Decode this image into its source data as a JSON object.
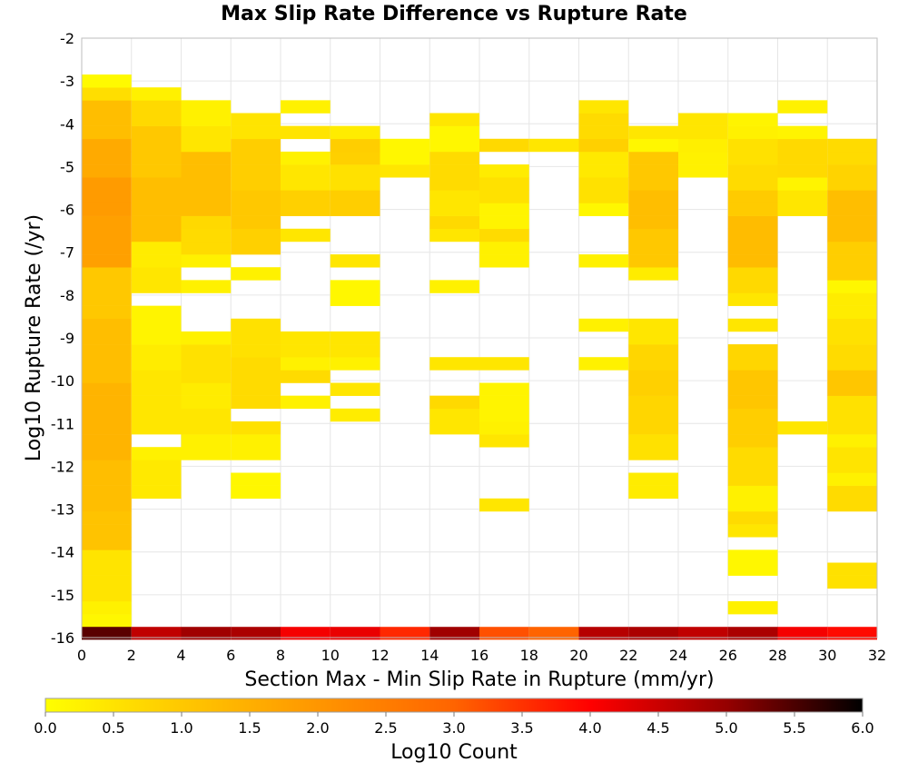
{
  "chart_data": {
    "type": "heatmap",
    "title": "Max Slip Rate Difference vs Rupture Rate",
    "xlabel": "Section Max - Min Slip Rate in Rupture (mm/yr)",
    "ylabel": "Log10 Rupture Rate (/yr)",
    "xlim": [
      0,
      32
    ],
    "ylim": [
      -16,
      -2
    ],
    "x_ticks": [
      "0",
      "2",
      "4",
      "6",
      "8",
      "10",
      "12",
      "14",
      "16",
      "18",
      "20",
      "22",
      "24",
      "26",
      "28",
      "30",
      "32"
    ],
    "y_ticks": [
      "-2",
      "-3",
      "-4",
      "-5",
      "-6",
      "-7",
      "-8",
      "-9",
      "-10",
      "-11",
      "-12",
      "-13",
      "-14",
      "-15",
      "-16"
    ],
    "bin_width_x": 2,
    "bin_height_y": 0.3,
    "grid": true,
    "colorbar": {
      "label": "Log10 Count",
      "range": [
        0,
        6
      ],
      "ticks": [
        "0.0",
        "0.5",
        "1.0",
        "1.5",
        "2.0",
        "2.5",
        "3.0",
        "3.5",
        "4.0",
        "4.5",
        "5.0",
        "5.5",
        "6.0"
      ],
      "colors": [
        "#ffff00",
        "#ffc800",
        "#ff9600",
        "#ff6400",
        "#ff0000",
        "#960000",
        "#000000"
      ]
    },
    "bottom_row_y": -15.9,
    "bottom_row_values": [
      5.4,
      4.6,
      4.9,
      4.8,
      4.1,
      4.2,
      3.6,
      4.9,
      3.2,
      3.0,
      4.7,
      4.8,
      4.6,
      4.8,
      4.1,
      3.9
    ],
    "columns": [
      {
        "x": 1,
        "runs": [
          [
            "-15.6",
            "-15.6",
            0.15
          ],
          [
            "-15.3",
            "-15.3",
            0.25
          ],
          [
            "-15.0",
            "-14.1",
            0.5
          ],
          [
            "-13.8",
            "-13.2",
            1.1
          ],
          [
            "-12.9",
            "-12.0",
            1.2
          ],
          [
            "-11.7",
            "-10.2",
            1.4
          ],
          [
            "-9.9",
            "-8.7",
            1.2
          ],
          [
            "-8.4",
            "-7.5",
            1.0
          ],
          [
            "-7.2",
            "-6.3",
            1.8
          ],
          [
            "-6.0",
            "-5.4",
            1.9
          ],
          [
            "-5.1",
            "-4.5",
            1.6
          ],
          [
            "-4.2",
            "-3.6",
            1.2
          ],
          [
            "-3.3",
            "-3.3",
            0.6
          ],
          [
            "-3.0",
            "-3.0",
            0.1
          ]
        ]
      },
      {
        "x": 3,
        "runs": [
          [
            "-12.6",
            "-12.0",
            0.4
          ],
          [
            "-11.7",
            "-11.7",
            0.25
          ],
          [
            "-11.1",
            "-9.9",
            0.45
          ],
          [
            "-9.6",
            "-9.3",
            0.35
          ],
          [
            "-9.0",
            "-8.4",
            0.2
          ],
          [
            "-7.8",
            "-7.5",
            0.45
          ],
          [
            "-7.2",
            "-6.9",
            0.35
          ],
          [
            "-6.6",
            "-5.4",
            1.2
          ],
          [
            "-5.1",
            "-4.2",
            1.0
          ],
          [
            "-3.9",
            "-3.6",
            0.7
          ],
          [
            "-3.3",
            "-3.3",
            0.25
          ]
        ]
      },
      {
        "x": 5,
        "runs": [
          [
            "-11.7",
            "-11.4",
            0.25
          ],
          [
            "-11.1",
            "-10.8",
            0.45
          ],
          [
            "-10.5",
            "-10.2",
            0.35
          ],
          [
            "-9.9",
            "-9.3",
            0.55
          ],
          [
            "-9.0",
            "-9.0",
            0.25
          ],
          [
            "-7.8",
            "-7.8",
            0.25
          ],
          [
            "-7.2",
            "-7.2",
            0.25
          ],
          [
            "-6.9",
            "-6.6",
            0.65
          ],
          [
            "-6.3",
            "-6.3",
            0.7
          ],
          [
            "-6.0",
            "-4.8",
            1.2
          ],
          [
            "-4.5",
            "-4.2",
            0.45
          ],
          [
            "-3.9",
            "-3.6",
            0.25
          ]
        ]
      },
      {
        "x": 7,
        "runs": [
          [
            "-12.6",
            "-12.3",
            0.15
          ],
          [
            "-11.7",
            "-11.4",
            0.25
          ],
          [
            "-11.1",
            "-11.1",
            0.55
          ],
          [
            "-10.5",
            "-9.6",
            0.65
          ],
          [
            "-9.3",
            "-8.7",
            0.55
          ],
          [
            "-7.5",
            "-7.5",
            0.25
          ],
          [
            "-6.9",
            "-6.6",
            0.85
          ],
          [
            "-6.3",
            "-5.7",
            1.0
          ],
          [
            "-5.4",
            "-4.5",
            0.9
          ],
          [
            "-4.2",
            "-3.9",
            0.5
          ]
        ]
      },
      {
        "x": 9,
        "runs": [
          [
            "-10.5",
            "-10.5",
            0.25
          ],
          [
            "-9.9",
            "-9.9",
            0.65
          ],
          [
            "-9.6",
            "-9.6",
            0.25
          ],
          [
            "-9.3",
            "-9.0",
            0.45
          ],
          [
            "-6.6",
            "-6.6",
            0.45
          ],
          [
            "-6.0",
            "-5.7",
            0.85
          ],
          [
            "-5.4",
            "-5.1",
            0.45
          ],
          [
            "-4.8",
            "-4.8",
            0.25
          ],
          [
            "-4.2",
            "-4.2",
            0.5
          ],
          [
            "-3.6",
            "-3.6",
            0.25
          ]
        ]
      },
      {
        "x": 11,
        "runs": [
          [
            "-10.8",
            "-10.8",
            0.35
          ],
          [
            "-10.2",
            "-10.2",
            0.45
          ],
          [
            "-9.6",
            "-9.6",
            0.25
          ],
          [
            "-9.3",
            "-9.0",
            0.45
          ],
          [
            "-8.1",
            "-7.8",
            0.15
          ],
          [
            "-7.2",
            "-7.2",
            0.45
          ],
          [
            "-6.0",
            "-5.7",
            0.9
          ],
          [
            "-5.4",
            "-5.1",
            0.55
          ],
          [
            "-4.8",
            "-4.8",
            0.85
          ],
          [
            "-4.5",
            "-4.5",
            0.9
          ],
          [
            "-4.2",
            "-4.2",
            0.35
          ]
        ]
      },
      {
        "x": 13,
        "runs": [
          [
            "-5.1",
            "-5.1",
            0.45
          ],
          [
            "-4.8",
            "-4.5",
            0.15
          ]
        ]
      },
      {
        "x": 15,
        "runs": [
          [
            "-11.1",
            "-10.8",
            0.45
          ],
          [
            "-10.5",
            "-10.5",
            0.7
          ],
          [
            "-9.6",
            "-9.6",
            0.45
          ],
          [
            "-7.8",
            "-7.8",
            0.25
          ],
          [
            "-6.6",
            "-6.6",
            0.45
          ],
          [
            "-6.3",
            "-6.3",
            0.7
          ],
          [
            "-6.0",
            "-5.7",
            0.45
          ],
          [
            "-5.4",
            "-4.8",
            0.65
          ],
          [
            "-4.5",
            "-4.2",
            0.15
          ],
          [
            "-3.9",
            "-3.9",
            0.45
          ]
        ]
      },
      {
        "x": 17,
        "runs": [
          [
            "-12.9",
            "-12.9",
            0.45
          ],
          [
            "-11.4",
            "-11.4",
            0.45
          ],
          [
            "-11.1",
            "-11.1",
            0.25
          ],
          [
            "-10.8",
            "-10.2",
            0.2
          ],
          [
            "-9.6",
            "-9.6",
            0.45
          ],
          [
            "-7.2",
            "-6.9",
            0.25
          ],
          [
            "-6.6",
            "-6.6",
            0.65
          ],
          [
            "-6.3",
            "-6.0",
            0.2
          ],
          [
            "-5.7",
            "-5.4",
            0.55
          ],
          [
            "-5.1",
            "-5.1",
            0.35
          ],
          [
            "-4.5",
            "-4.5",
            0.7
          ]
        ]
      },
      {
        "x": 19,
        "runs": [
          [
            "-4.5",
            "-4.5",
            0.45
          ]
        ]
      },
      {
        "x": 21,
        "runs": [
          [
            "-9.6",
            "-9.6",
            0.25
          ],
          [
            "-8.7",
            "-8.7",
            0.25
          ],
          [
            "-7.2",
            "-7.2",
            0.25
          ],
          [
            "-6.0",
            "-6.0",
            0.15
          ],
          [
            "-5.7",
            "-5.4",
            0.55
          ],
          [
            "-5.1",
            "-4.8",
            0.4
          ],
          [
            "-4.5",
            "-4.5",
            0.85
          ],
          [
            "-4.2",
            "-3.9",
            0.65
          ],
          [
            "-3.6",
            "-3.6",
            0.45
          ]
        ]
      },
      {
        "x": 23,
        "runs": [
          [
            "-12.6",
            "-12.3",
            0.35
          ],
          [
            "-11.7",
            "-11.4",
            0.55
          ],
          [
            "-11.1",
            "-10.5",
            0.75
          ],
          [
            "-10.2",
            "-9.9",
            0.85
          ],
          [
            "-9.6",
            "-9.3",
            0.75
          ],
          [
            "-9.0",
            "-8.7",
            0.45
          ],
          [
            "-7.5",
            "-7.5",
            0.35
          ],
          [
            "-7.2",
            "-6.6",
            1.0
          ],
          [
            "-6.3",
            "-5.7",
            1.2
          ],
          [
            "-5.4",
            "-4.8",
            1.0
          ],
          [
            "-4.5",
            "-4.5",
            0.15
          ],
          [
            "-4.2",
            "-4.2",
            0.45
          ]
        ]
      },
      {
        "x": 25,
        "runs": [
          [
            "-5.1",
            "-4.8",
            0.25
          ],
          [
            "-4.5",
            "-4.5",
            0.3
          ],
          [
            "-4.2",
            "-3.9",
            0.45
          ]
        ]
      },
      {
        "x": 27,
        "runs": [
          [
            "-15.3",
            "-15.3",
            0.25
          ],
          [
            "-14.4",
            "-14.1",
            0.15
          ],
          [
            "-13.5",
            "-13.5",
            0.45
          ],
          [
            "-13.2",
            "-13.2",
            0.65
          ],
          [
            "-12.9",
            "-12.6",
            0.25
          ],
          [
            "-12.3",
            "-11.7",
            0.65
          ],
          [
            "-11.4",
            "-10.8",
            0.9
          ],
          [
            "-10.5",
            "-9.9",
            1.05
          ],
          [
            "-9.6",
            "-9.3",
            0.75
          ],
          [
            "-8.7",
            "-8.7",
            0.45
          ],
          [
            "-8.1",
            "-8.1",
            0.45
          ],
          [
            "-7.8",
            "-7.5",
            0.7
          ],
          [
            "-7.2",
            "-6.3",
            1.25
          ],
          [
            "-6.0",
            "-5.7",
            0.95
          ],
          [
            "-5.4",
            "-5.1",
            0.65
          ],
          [
            "-4.8",
            "-4.5",
            0.55
          ],
          [
            "-4.2",
            "-4.2",
            0.25
          ],
          [
            "-3.9",
            "-3.9",
            0.2
          ]
        ]
      },
      {
        "x": 29,
        "runs": [
          [
            "-11.1",
            "-11.1",
            0.45
          ],
          [
            "-6.0",
            "-5.7",
            0.45
          ],
          [
            "-5.4",
            "-5.4",
            0.2
          ],
          [
            "-5.1",
            "-4.5",
            0.7
          ],
          [
            "-4.2",
            "-4.2",
            0.2
          ],
          [
            "-3.6",
            "-3.6",
            0.25
          ]
        ]
      },
      {
        "x": 31,
        "runs": [
          [
            "-14.7",
            "-14.4",
            0.55
          ],
          [
            "-12.9",
            "-12.6",
            0.65
          ],
          [
            "-12.3",
            "-12.3",
            0.25
          ],
          [
            "-12.0",
            "-11.7",
            0.5
          ],
          [
            "-11.4",
            "-11.4",
            0.25
          ],
          [
            "-11.1",
            "-10.5",
            0.55
          ],
          [
            "-10.2",
            "-9.9",
            1.05
          ],
          [
            "-9.6",
            "-9.3",
            0.65
          ],
          [
            "-9.0",
            "-8.7",
            0.55
          ],
          [
            "-8.4",
            "-8.1",
            0.35
          ],
          [
            "-7.8",
            "-7.8",
            0.15
          ],
          [
            "-7.5",
            "-6.9",
            0.9
          ],
          [
            "-6.6",
            "-5.7",
            1.2
          ],
          [
            "-5.4",
            "-5.1",
            0.8
          ],
          [
            "-4.8",
            "-4.5",
            0.65
          ]
        ]
      }
    ]
  }
}
